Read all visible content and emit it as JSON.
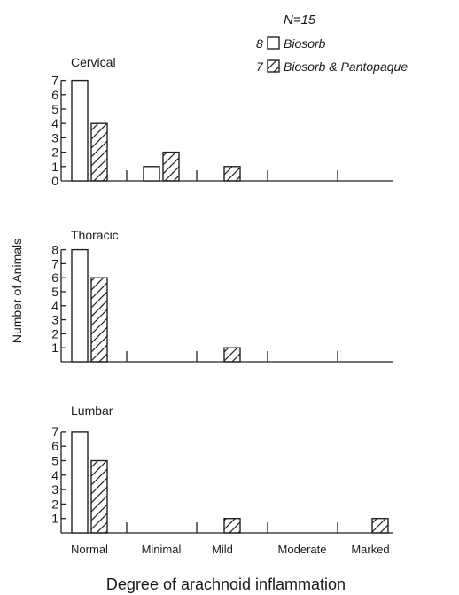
{
  "legend": {
    "n_label": "N=15",
    "entries": [
      {
        "count": "8",
        "label": "Biosorb",
        "pattern": "open"
      },
      {
        "count": "7",
        "label": "Biosorb & Pantopaque",
        "pattern": "hatched"
      }
    ]
  },
  "ylabel": "Number of Animals",
  "xlabel": "Degree of arachnoid inflammation",
  "categories": [
    "Normal",
    "Minimal",
    "Mild",
    "Moderate",
    "Marked"
  ],
  "chart_data": [
    {
      "type": "bar",
      "title": "Cervical",
      "categories": [
        "Normal",
        "Minimal",
        "Mild",
        "Moderate",
        "Marked"
      ],
      "series": [
        {
          "name": "Biosorb",
          "values": [
            7,
            1,
            0,
            0,
            0
          ]
        },
        {
          "name": "Biosorb & Pantopaque",
          "values": [
            4,
            2,
            1,
            0,
            0
          ]
        }
      ],
      "yticks": [
        "0",
        "1",
        "2",
        "3",
        "4",
        "5",
        "6",
        "7"
      ],
      "ylim": [
        0,
        7
      ]
    },
    {
      "type": "bar",
      "title": "Thoracic",
      "categories": [
        "Normal",
        "Minimal",
        "Mild",
        "Moderate",
        "Marked"
      ],
      "series": [
        {
          "name": "Biosorb",
          "values": [
            8,
            0,
            0,
            0,
            0
          ]
        },
        {
          "name": "Biosorb & Pantopaque",
          "values": [
            6,
            0,
            1,
            0,
            0
          ]
        }
      ],
      "yticks": [
        "1",
        "2",
        "3",
        "4",
        "5",
        "6",
        "7",
        "8"
      ],
      "ylim": [
        0,
        8
      ]
    },
    {
      "type": "bar",
      "title": "Lumbar",
      "categories": [
        "Normal",
        "Minimal",
        "Mild",
        "Moderate",
        "Marked"
      ],
      "series": [
        {
          "name": "Biosorb",
          "values": [
            7,
            0,
            0,
            0,
            0
          ]
        },
        {
          "name": "Biosorb & Pantopaque",
          "values": [
            5,
            0,
            1,
            0,
            1
          ]
        }
      ],
      "yticks": [
        "1",
        "2",
        "3",
        "4",
        "5",
        "6",
        "7"
      ],
      "ylim": [
        0,
        7
      ]
    }
  ]
}
